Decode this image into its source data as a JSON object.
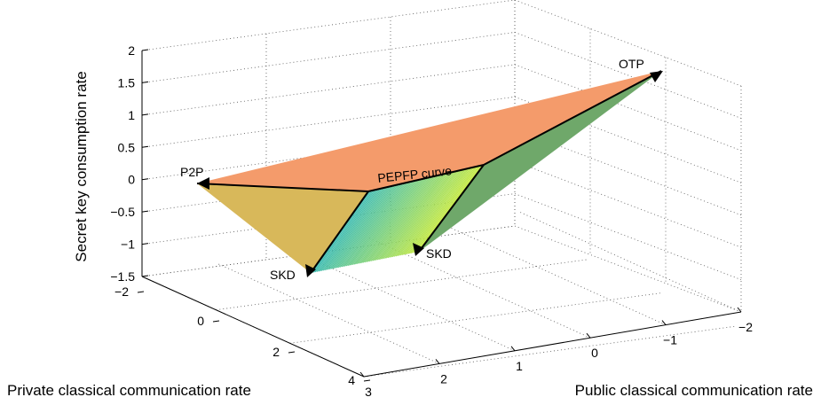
{
  "chart_data": {
    "type": "surface3d",
    "title": "",
    "xlabel": "Private classical communication rate",
    "ylabel": "Public classical communication rate",
    "zlabel": "Secret key consumption rate",
    "xlim": [
      -2,
      4
    ],
    "ylim": [
      -2,
      3
    ],
    "zlim": [
      -1.5,
      2
    ],
    "xticks": [
      "−2",
      "0",
      "2",
      "4"
    ],
    "yticks": [
      "3",
      "2",
      "1",
      "0",
      "−1",
      "−2"
    ],
    "zticks": [
      "−1.5",
      "−1",
      "−0.5",
      "0",
      "0.5",
      "1",
      "1.5",
      "2"
    ],
    "grid": true,
    "points": [
      {
        "name": "P2P",
        "x": 0,
        "y": 2,
        "z": 0
      },
      {
        "name": "OTP",
        "x": 0,
        "y": -2,
        "z": 2
      },
      {
        "name": "SKD",
        "x": 2,
        "y": 2,
        "z": -1.5
      },
      {
        "name": "SKD",
        "x": 2,
        "y": 0.4,
        "z": -0.9
      }
    ],
    "annotations": [
      "P2P",
      "OTP",
      "SKD",
      "SKD",
      "PEPFP curve"
    ],
    "colors": {
      "upper_face": "#F49B6B",
      "left_face": "#D8B85A",
      "right_face": "#6FA86A",
      "curve_fill_start": "#33B8B0",
      "curve_fill_end": "#C4E83A",
      "arrows": "#000000"
    }
  }
}
